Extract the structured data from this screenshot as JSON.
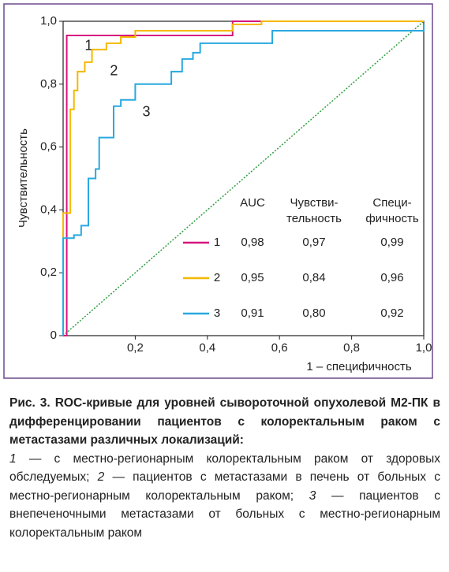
{
  "chart_data": {
    "type": "line",
    "xlabel": "1 – специфичность",
    "ylabel": "Чувствительность",
    "xlim": [
      0,
      1
    ],
    "ylim": [
      0,
      1
    ],
    "xticks": [
      {
        "value": 0.2,
        "label": "0,2"
      },
      {
        "value": 0.4,
        "label": "0,4"
      },
      {
        "value": 0.6,
        "label": "0,6"
      },
      {
        "value": 0.8,
        "label": "0,8"
      },
      {
        "value": 1,
        "label": "1,0"
      }
    ],
    "yticks": [
      0,
      {
        "value": 0.2,
        "label": "0,2"
      },
      {
        "value": 0.4,
        "label": "0,4"
      },
      {
        "value": 0.6,
        "label": "0,6"
      },
      {
        "value": 0.8,
        "label": "0,8"
      },
      {
        "value": 1,
        "label": "1,0"
      }
    ],
    "diagonal_color": "#2e9e3e",
    "series": [
      {
        "name": "1",
        "color": "#d6147f",
        "x": [
          0,
          0.01,
          0.01,
          0.47,
          0.47,
          1
        ],
        "values": [
          0,
          0,
          0.955,
          0.955,
          1,
          1
        ],
        "label_at": [
          0.06,
          0.92
        ]
      },
      {
        "name": "2",
        "color": "#f5b800",
        "x": [
          0,
          0,
          0.02,
          0.02,
          0.03,
          0.03,
          0.04,
          0.04,
          0.06,
          0.06,
          0.08,
          0.08,
          0.12,
          0.12,
          0.16,
          0.16,
          0.2,
          0.2,
          0.47,
          0.47,
          0.55,
          0.55,
          1
        ],
        "values": [
          0,
          0.39,
          0.39,
          0.72,
          0.72,
          0.78,
          0.78,
          0.84,
          0.84,
          0.87,
          0.87,
          0.91,
          0.91,
          0.93,
          0.93,
          0.95,
          0.95,
          0.97,
          0.97,
          0.99,
          0.99,
          1,
          1
        ],
        "label_at": [
          0.13,
          0.84
        ]
      },
      {
        "name": "3",
        "color": "#29a9e0",
        "x": [
          0,
          0,
          0.03,
          0.03,
          0.05,
          0.05,
          0.07,
          0.07,
          0.09,
          0.09,
          0.1,
          0.1,
          0.14,
          0.14,
          0.16,
          0.16,
          0.2,
          0.2,
          0.3,
          0.3,
          0.33,
          0.33,
          0.36,
          0.36,
          0.38,
          0.38,
          0.58,
          0.58,
          1,
          1
        ],
        "values": [
          0,
          0.31,
          0.31,
          0.32,
          0.32,
          0.35,
          0.35,
          0.5,
          0.5,
          0.53,
          0.53,
          0.63,
          0.63,
          0.73,
          0.73,
          0.75,
          0.75,
          0.8,
          0.8,
          0.84,
          0.84,
          0.88,
          0.88,
          0.9,
          0.9,
          0.93,
          0.93,
          0.97,
          0.97,
          0.99
        ],
        "label_at": [
          0.22,
          0.71
        ]
      }
    ],
    "legend_table": {
      "headers": [
        [
          "AUC"
        ],
        [
          "Чувстви-",
          "тельность"
        ],
        [
          "Специ-",
          "фичность"
        ]
      ],
      "rows": [
        [
          "0,98",
          "0,97",
          "0,99"
        ],
        [
          "0,95",
          "0,84",
          "0,96"
        ],
        [
          "0,91",
          "0,80",
          "0,92"
        ]
      ]
    }
  },
  "caption": {
    "title": "Рис. 3. ROC-кривые для уровней сывороточной опухолевой М2-ПК в дифференцировании пациентов с колоректальным раком с метастазами различных локализаций:",
    "notes": [
      {
        "num": "1",
        "text": " — с местно-регионарным колоректальным раком от здоровых обследуемых; "
      },
      {
        "num": "2",
        "text": " — пациентов с метастазами в печень от больных с местно-регионарным колоректальным раком; "
      },
      {
        "num": "3",
        "text": " — пациентов с внепеченочными метастазами от больных с местно-регионарным колоректальным раком"
      }
    ]
  }
}
